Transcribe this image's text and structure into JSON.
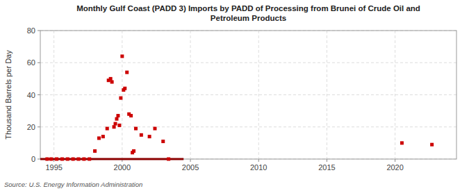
{
  "chart_data": {
    "type": "scatter",
    "title": "Monthly Gulf Coast (PADD 3) Imports by PADD of Processing from Brunei of Crude Oil and\nPetroleum Products",
    "ylabel": "Thousand Barrels per Day",
    "source": "Source: U.S. Energy Information Administration",
    "xlim": [
      1994.0,
      2024.5
    ],
    "ylim": [
      0,
      80
    ],
    "xticks": [
      1995,
      2000,
      2005,
      2010,
      2015,
      2020
    ],
    "yticks": [
      0,
      20,
      40,
      60,
      80
    ],
    "grid": true,
    "series": [
      {
        "type": "scatter",
        "color": "#cc0000",
        "marker": "square",
        "x": [
          1994.5,
          1994.8,
          1995.2,
          1995.6,
          1996.0,
          1996.4,
          1996.8,
          1997.2,
          1997.6,
          1998.0,
          1998.3,
          1998.6,
          1998.9,
          1999.0,
          1999.15,
          1999.25,
          1999.4,
          1999.5,
          1999.6,
          1999.7,
          1999.8,
          1999.9,
          2000.0,
          2000.1,
          2000.2,
          2000.35,
          2000.5,
          2000.65,
          2000.75,
          2000.85,
          2001.0,
          2001.4,
          2002.0,
          2002.4,
          2003.0,
          2003.4,
          2020.5,
          2022.7
        ],
        "values": [
          0,
          0,
          0,
          0,
          0,
          0,
          0,
          0,
          0,
          5,
          13,
          14,
          19,
          49,
          50,
          48,
          20,
          22,
          25,
          27,
          21,
          38,
          64,
          43,
          44,
          54,
          28,
          27,
          4,
          5,
          19,
          15,
          14,
          19,
          11,
          0,
          10,
          9
        ]
      },
      {
        "type": "line",
        "color": "#8b0000",
        "line_style": "solid",
        "x": [
          1994.0,
          2004.5
        ],
        "values": [
          0,
          0
        ]
      }
    ]
  }
}
